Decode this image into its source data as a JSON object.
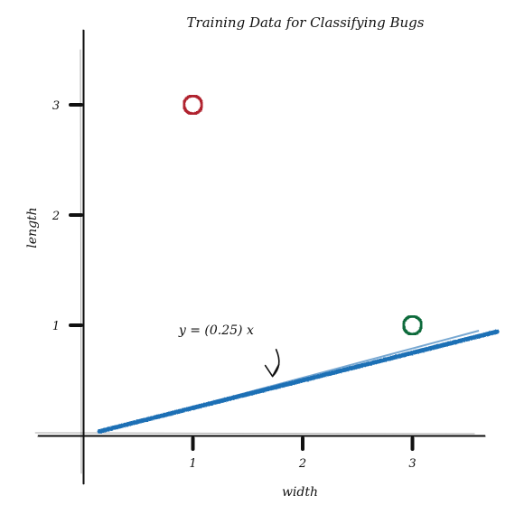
{
  "chart_data": {
    "type": "scatter",
    "title": "Training Data for Classifying Bugs",
    "xlabel": "width",
    "ylabel": "length",
    "xlim": [
      -0.15,
      3.65
    ],
    "ylim": [
      -0.1,
      3.65
    ],
    "x_ticks": [
      1,
      2,
      3
    ],
    "y_ticks": [
      1,
      2,
      3
    ],
    "grid": false,
    "points": [
      {
        "x": 1,
        "y": 3,
        "color": "#b0202e"
      },
      {
        "x": 3,
        "y": 1,
        "color": "#0b6b3a"
      }
    ],
    "line": {
      "slope": 0.25,
      "intercept": 0,
      "x_start": 0.15,
      "x_end": 3.77,
      "color": "#1f6fb5"
    },
    "annotation": {
      "text": "y = (0.25) x",
      "text_x": 1.04,
      "text_y": 0.96,
      "arrow_to_x": 1.75,
      "arrow_to_y": 0.52
    },
    "axis_color": "#111111"
  }
}
